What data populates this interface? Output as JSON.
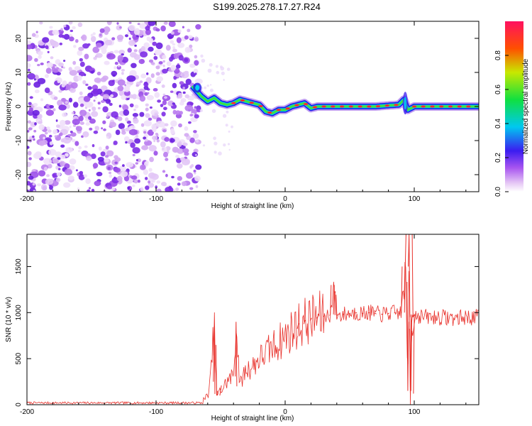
{
  "title": "S199.2025.278.17.27.R24",
  "chart_data": [
    {
      "type": "heatmap",
      "xlabel": "Height of straight line (km)",
      "ylabel": "Frequency (Hz)",
      "xlim": [
        -200,
        150
      ],
      "ylim": [
        -25,
        25
      ],
      "xticks": [
        -200,
        -100,
        0,
        100
      ],
      "yticks": [
        -20,
        -10,
        0,
        10,
        20
      ],
      "colorbar": {
        "label": "Normalized spectral amplitude",
        "range": [
          0,
          1
        ],
        "ticks": [
          "0.0",
          "0.2",
          "0.4",
          "0.6",
          "0.8"
        ]
      },
      "noise_region_x": [
        -200,
        -70
      ],
      "ridge": {
        "x": [
          -72,
          -65,
          -60,
          -55,
          -50,
          -45,
          -40,
          -35,
          -30,
          -25,
          -20,
          -15,
          -10,
          -5,
          0,
          5,
          10,
          15,
          20,
          25,
          30,
          40,
          50,
          60,
          70,
          80,
          88,
          92,
          95,
          100,
          110,
          120,
          130,
          140,
          150
        ],
        "y": [
          6,
          3,
          1.5,
          2.5,
          1,
          0.5,
          1,
          2,
          1.5,
          1,
          0.5,
          -1.5,
          -2,
          -1,
          -1,
          0,
          0.5,
          1,
          -0.5,
          0,
          0,
          0,
          0,
          0,
          0,
          0.3,
          0.5,
          2,
          -1,
          0,
          0,
          0,
          0,
          0,
          0
        ]
      }
    },
    {
      "type": "line",
      "xlabel": "Height of straight line (km)",
      "ylabel": "SNR (10 * v/v)",
      "xlim": [
        -200,
        150
      ],
      "ylim": [
        0,
        1850
      ],
      "xticks": [
        -200,
        -100,
        0,
        100
      ],
      "yticks": [
        0,
        500,
        1000,
        1500
      ],
      "series": [
        {
          "name": "SNR",
          "color": "#e8312b",
          "x": [
            -200,
            -180,
            -160,
            -140,
            -120,
            -100,
            -80,
            -65,
            -60,
            -58,
            -55,
            -53,
            -50,
            -45,
            -40,
            -38,
            -35,
            -33,
            -30,
            -25,
            -20,
            -15,
            -10,
            -5,
            0,
            5,
            10,
            15,
            20,
            25,
            30,
            35,
            38,
            40,
            45,
            50,
            55,
            60,
            65,
            70,
            75,
            80,
            85,
            90,
            93,
            95,
            96,
            97,
            98,
            99,
            100,
            105,
            110,
            120,
            130,
            140,
            150
          ],
          "y": [
            20,
            20,
            20,
            20,
            20,
            20,
            20,
            20,
            100,
            250,
            850,
            100,
            150,
            250,
            320,
            900,
            200,
            300,
            380,
            420,
            500,
            560,
            620,
            680,
            740,
            800,
            860,
            900,
            930,
            950,
            960,
            980,
            1300,
            970,
            980,
            990,
            1000,
            990,
            1000,
            990,
            980,
            990,
            1000,
            1000,
            1500,
            150,
            1850,
            120,
            900,
            950,
            980,
            960,
            950,
            950,
            940,
            950,
            950
          ]
        }
      ]
    }
  ]
}
